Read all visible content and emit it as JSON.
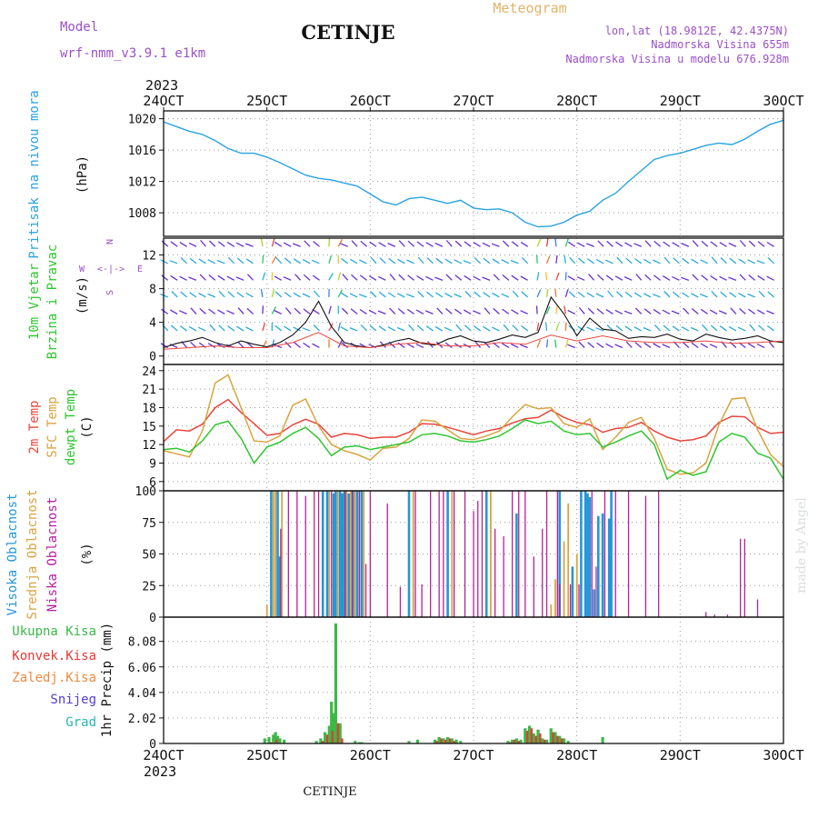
{
  "header": {
    "model_label": "Model",
    "model_name": "wrf-nmm_v3.9.1  e1km",
    "city_title": "CETINJE",
    "meteogram_label": "Meteogram",
    "lonlat": "lon,lat (18.9812E, 42.4375N)",
    "elevation": "Nadmorska Visina 655m",
    "model_elevation": "Nadmorska Visina u modelu 676.928m",
    "year_top": "2023",
    "year_bottom": "2023",
    "footer_city": "CETINJE",
    "credit": "made by Angel"
  },
  "colors": {
    "pressure": "#29a3e0",
    "temp2m": "#e8453c",
    "sfctemp": "#d9a441",
    "dewpt": "#2ec52e",
    "cloud_high": "#2596d6",
    "cloud_mid": "#d9a441",
    "cloud_low": "#b5229a",
    "precip_total": "#3cb846",
    "precip_conv": "#e53935",
    "precip_frozen": "#f08a3c",
    "precip_snow": "#4f3fd6",
    "precip_grad": "#27b5b0",
    "wind_speed": "#111111",
    "wind_gust": "#e8453c",
    "header_purple": "#9b4fc9",
    "header_gold": "#e0b46a"
  },
  "chart_data": [
    {
      "type": "line",
      "panel": "pressure",
      "ylabel_name": "Pritisak na nivou mora",
      "ylabel_unit": "(hPa)",
      "x_tick_labels": [
        "24OCT",
        "25OCT",
        "26OCT",
        "27OCT",
        "28OCT",
        "29OCT",
        "30OCT"
      ],
      "x_range_hours": [
        0,
        144
      ],
      "ylim": [
        1005,
        1021
      ],
      "y_ticks": [
        1008,
        1012,
        1016,
        1020
      ],
      "series": [
        {
          "key": "pressure",
          "x": [
            0,
            3,
            6,
            9,
            12,
            15,
            18,
            21,
            24,
            27,
            30,
            33,
            36,
            39,
            42,
            45,
            48,
            51,
            54,
            57,
            60,
            63,
            66,
            69,
            72,
            75,
            78,
            81,
            84,
            87,
            90,
            93,
            96,
            99,
            102,
            105,
            108,
            111,
            114,
            117,
            120,
            123,
            126,
            129,
            132,
            135,
            138,
            141,
            144
          ],
          "values": [
            1019.6,
            1019.0,
            1018.4,
            1018.0,
            1017.2,
            1016.2,
            1015.6,
            1015.6,
            1015.1,
            1014.4,
            1013.6,
            1012.8,
            1012.4,
            1012.2,
            1011.8,
            1011.4,
            1010.4,
            1009.4,
            1009.0,
            1009.8,
            1010.0,
            1009.6,
            1009.2,
            1009.6,
            1008.6,
            1008.4,
            1008.5,
            1008.0,
            1006.8,
            1006.2,
            1006.3,
            1006.8,
            1007.7,
            1008.2,
            1009.6,
            1010.5,
            1012.0,
            1013.4,
            1014.8,
            1015.3,
            1015.6,
            1016.1,
            1016.6,
            1016.9,
            1016.7,
            1017.4,
            1018.4,
            1019.3,
            1019.8
          ]
        }
      ]
    },
    {
      "type": "line",
      "panel": "wind",
      "ylabel_name": "10m Vjetar",
      "ylabel_name2": "Brzina i Pravac",
      "ylabel_unit": "(m/s)",
      "compass": {
        "north": "N",
        "south": "S",
        "west": "W",
        "east": "E"
      },
      "ylim": [
        -1,
        14
      ],
      "y_ticks": [
        0,
        4,
        8,
        12
      ],
      "series": [
        {
          "key": "wind_speed",
          "x": [
            0,
            3,
            6,
            9,
            12,
            15,
            18,
            21,
            24,
            27,
            30,
            33,
            36,
            39,
            42,
            45,
            48,
            51,
            54,
            57,
            60,
            63,
            66,
            69,
            72,
            75,
            78,
            81,
            84,
            87,
            90,
            93,
            96,
            99,
            102,
            105,
            108,
            111,
            114,
            117,
            120,
            123,
            126,
            129,
            132,
            135,
            138,
            141,
            144
          ],
          "values": [
            1.0,
            1.5,
            1.8,
            2.2,
            1.6,
            1.2,
            1.8,
            1.4,
            1.1,
            1.6,
            2.5,
            4.0,
            6.5,
            3.5,
            1.6,
            1.2,
            1.0,
            1.3,
            1.8,
            2.1,
            1.5,
            1.3,
            2.0,
            2.4,
            1.8,
            1.6,
            2.0,
            2.5,
            2.2,
            2.8,
            7.0,
            5.0,
            2.4,
            4.5,
            3.2,
            3.0,
            2.1,
            2.3,
            2.2,
            2.6,
            2.0,
            1.8,
            2.6,
            2.2,
            1.9,
            2.1,
            2.4,
            1.8,
            1.6
          ]
        },
        {
          "key": "wind_gust",
          "x": [
            0,
            6,
            12,
            18,
            24,
            30,
            36,
            42,
            48,
            54,
            60,
            66,
            72,
            78,
            84,
            90,
            96,
            102,
            108,
            114,
            120,
            126,
            132,
            138,
            144
          ],
          "values": [
            0.8,
            1.0,
            1.2,
            1.0,
            1.0,
            1.6,
            2.8,
            1.2,
            1.0,
            1.4,
            1.6,
            1.2,
            1.2,
            1.6,
            1.4,
            2.5,
            1.8,
            2.4,
            1.8,
            1.6,
            1.6,
            1.8,
            1.5,
            1.6,
            1.8
          ]
        }
      ]
    },
    {
      "type": "line",
      "panel": "temperature",
      "ylabel_names": [
        "2m Temp",
        "SFC Temp",
        "dewpt Temp"
      ],
      "ylabel_unit": "(C)",
      "ylim": [
        4.5,
        25
      ],
      "y_ticks": [
        6,
        9,
        12,
        15,
        18,
        21,
        24
      ],
      "series": [
        {
          "key": "temp2m",
          "x": [
            0,
            3,
            6,
            9,
            12,
            15,
            18,
            21,
            24,
            27,
            30,
            33,
            36,
            39,
            42,
            45,
            48,
            51,
            54,
            57,
            60,
            63,
            66,
            69,
            72,
            75,
            78,
            81,
            84,
            87,
            90,
            93,
            96,
            99,
            102,
            105,
            108,
            111,
            114,
            117,
            120,
            123,
            126,
            129,
            132,
            135,
            138,
            141,
            144
          ],
          "values": [
            12.5,
            14.4,
            14.2,
            15.3,
            18.0,
            19.3,
            17.2,
            15.4,
            13.5,
            13.8,
            15.2,
            16.1,
            15.3,
            13.2,
            13.8,
            13.6,
            13.0,
            13.2,
            13.2,
            14.0,
            15.4,
            15.3,
            14.8,
            14.2,
            13.6,
            14.2,
            14.6,
            15.5,
            16.2,
            16.4,
            17.6,
            16.4,
            15.6,
            15.2,
            14.0,
            14.6,
            14.8,
            15.6,
            14.2,
            13.2,
            12.6,
            12.8,
            13.4,
            15.6,
            16.6,
            16.5,
            14.8,
            13.8,
            14.0
          ]
        },
        {
          "key": "sfctemp",
          "x": [
            0,
            3,
            6,
            9,
            12,
            15,
            18,
            21,
            24,
            27,
            30,
            33,
            36,
            39,
            42,
            45,
            48,
            51,
            54,
            57,
            60,
            63,
            66,
            69,
            72,
            75,
            78,
            81,
            84,
            87,
            90,
            93,
            96,
            99,
            102,
            105,
            108,
            111,
            114,
            117,
            120,
            123,
            126,
            129,
            132,
            135,
            138,
            141,
            144
          ],
          "values": [
            11.0,
            10.5,
            10.0,
            14.2,
            22.0,
            23.3,
            18.0,
            12.6,
            12.4,
            13.4,
            18.4,
            19.4,
            15.0,
            12.0,
            11.0,
            10.4,
            9.5,
            11.4,
            11.6,
            13.0,
            16.0,
            15.8,
            14.4,
            13.0,
            12.8,
            13.4,
            14.2,
            16.5,
            18.5,
            17.8,
            18.0,
            15.4,
            14.8,
            16.2,
            11.2,
            13.2,
            15.6,
            16.4,
            13.0,
            8.0,
            7.2,
            7.4,
            9.0,
            15.2,
            19.4,
            19.6,
            14.4,
            10.4,
            8.4
          ]
        },
        {
          "key": "dewpt",
          "x": [
            0,
            3,
            6,
            9,
            12,
            15,
            18,
            21,
            24,
            27,
            30,
            33,
            36,
            39,
            42,
            45,
            48,
            51,
            54,
            57,
            60,
            63,
            66,
            69,
            72,
            75,
            78,
            81,
            84,
            87,
            90,
            93,
            96,
            99,
            102,
            105,
            108,
            111,
            114,
            117,
            120,
            123,
            126,
            129,
            132,
            135,
            138,
            141,
            144
          ],
          "values": [
            11.2,
            11.4,
            10.8,
            12.6,
            15.2,
            15.8,
            13.0,
            9.0,
            11.6,
            12.4,
            13.8,
            14.8,
            13.0,
            10.2,
            11.6,
            11.8,
            11.2,
            11.6,
            12.0,
            12.4,
            13.6,
            13.8,
            13.4,
            12.6,
            12.4,
            12.8,
            13.4,
            14.6,
            16.0,
            15.4,
            15.8,
            14.2,
            13.6,
            13.8,
            11.6,
            12.4,
            13.4,
            14.2,
            12.0,
            6.4,
            7.8,
            7.0,
            7.6,
            12.4,
            13.8,
            13.2,
            10.6,
            9.8,
            6.4
          ]
        }
      ]
    },
    {
      "type": "bar",
      "panel": "clouds",
      "ylabel_names": [
        "Visoka Oblacnost",
        "Srednja Oblacnost",
        "Niska Oblacnost"
      ],
      "ylabel_unit": "(%)",
      "ylim": [
        0,
        100
      ],
      "y_ticks": [
        0,
        25,
        50,
        75,
        100
      ],
      "series": [
        {
          "key": "cloud_high",
          "x": [
            25.0,
            26.5,
            27.0,
            37.0,
            38.0,
            39.5,
            40.0,
            41.0,
            41.5,
            42.0,
            43.0,
            44.0,
            45.0,
            46.0,
            57.0,
            66.0,
            75.0,
            82.0,
            92.0,
            95.0,
            97.0,
            98.0,
            98.5,
            99.0,
            100.0,
            101.0,
            102.0,
            103.5,
            104.0
          ],
          "values": [
            100,
            100,
            48,
            100,
            100,
            98,
            100,
            100,
            98,
            100,
            98,
            100,
            100,
            100,
            100,
            100,
            100,
            82,
            100,
            40,
            100,
            100,
            98,
            95,
            22,
            80,
            82,
            78,
            100
          ]
        },
        {
          "key": "cloud_mid",
          "x": [
            24.0,
            25.5,
            26.0,
            27.5,
            38.5,
            40.5,
            42.5,
            43.5,
            44.5,
            46.5,
            58.0,
            67.0,
            76.0,
            90.0,
            91.0,
            93.0,
            94.0,
            96.0
          ],
          "values": [
            10,
            100,
            100,
            100,
            100,
            100,
            100,
            100,
            100,
            100,
            100,
            100,
            100,
            10,
            30,
            60,
            90,
            50
          ]
        },
        {
          "key": "cloud_low",
          "x": [
            27.2,
            29.0,
            31.0,
            33.0,
            35.0,
            36.0,
            39.0,
            42.2,
            43.8,
            45.5,
            47.0,
            48.0,
            52.0,
            55.0,
            58.5,
            60.0,
            62.0,
            64.0,
            65.0,
            67.5,
            70.0,
            72.0,
            73.0,
            74.0,
            77.0,
            79.0,
            81.0,
            82.5,
            84.0,
            86.0,
            88.0,
            89.0,
            91.5,
            92.0,
            94.5,
            96.5,
            99.5,
            100.5,
            102.5,
            105.0,
            108.0,
            112.0,
            115.0,
            126.0,
            128.0,
            131.0,
            134.0,
            135.0,
            138.0
          ],
          "values": [
            70,
            100,
            100,
            96,
            100,
            100,
            100,
            100,
            100,
            100,
            42,
            100,
            90,
            24,
            100,
            26,
            100,
            100,
            100,
            100,
            100,
            84,
            92,
            100,
            70,
            64,
            100,
            100,
            100,
            48,
            70,
            100,
            100,
            26,
            26,
            26,
            100,
            40,
            100,
            100,
            100,
            96,
            100,
            4,
            2,
            2,
            62,
            62,
            14
          ]
        }
      ]
    },
    {
      "type": "bar",
      "panel": "precip",
      "legend": [
        "Ukupna Kisa",
        "Konvek.Kisa",
        "Zaledj.Kisa",
        "Snijeg",
        "Grad"
      ],
      "ylabel_name": "1hr Precip",
      "ylabel_unit": "(mm)",
      "ylim": [
        0,
        10
      ],
      "y_ticks": [
        0,
        2.02,
        4.04,
        6.06,
        8.08
      ],
      "tick_labels": [
        "0",
        "2.02",
        "4.04",
        "6.06",
        "8.08"
      ],
      "series": [
        {
          "key": "precip_total",
          "x": [
            23.5,
            24.5,
            25.5,
            26.0,
            26.5,
            27.0,
            28.0,
            35.5,
            36.5,
            37.5,
            38.5,
            39.0,
            39.5,
            40.0,
            41.0,
            44.5,
            45.5,
            46.0,
            57.0,
            59.0,
            63.0,
            64.0,
            65.0,
            66.0,
            67.0,
            68.0,
            69.0,
            80.0,
            81.0,
            82.0,
            83.0,
            84.0,
            85.0,
            86.0,
            87.0,
            88.0,
            89.0,
            90.0,
            91.0,
            92.0,
            93.0,
            94.0,
            102.0
          ],
          "values": [
            0.4,
            0.5,
            0.7,
            0.9,
            0.6,
            0.4,
            0.3,
            0.2,
            0.4,
            0.9,
            1.4,
            3.3,
            2.4,
            9.5,
            1.6,
            0.2,
            0.1,
            0.1,
            0.2,
            0.3,
            0.3,
            0.5,
            0.4,
            0.5,
            0.4,
            0.3,
            0.2,
            0.2,
            0.3,
            0.4,
            0.3,
            1.2,
            1.4,
            0.8,
            1.1,
            0.4,
            0.3,
            1.2,
            0.9,
            0.6,
            0.4,
            0.2,
            0.5
          ]
        },
        {
          "key": "precip_conv",
          "x": [
            25.0,
            26.2,
            37.0,
            38.0,
            39.2,
            40.5,
            41.5,
            63.5,
            64.5,
            65.5,
            66.5,
            67.5,
            80.5,
            81.5,
            82.5,
            84.5,
            85.5,
            86.5,
            87.5,
            88.5,
            90.5,
            91.5,
            92.5
          ],
          "values": [
            0.1,
            0.3,
            0.2,
            0.7,
            1.0,
            1.6,
            0.4,
            0.2,
            0.4,
            0.3,
            0.4,
            0.2,
            0.1,
            0.3,
            0.2,
            1.0,
            1.2,
            0.6,
            0.8,
            0.3,
            0.9,
            0.6,
            0.4
          ]
        }
      ]
    }
  ]
}
